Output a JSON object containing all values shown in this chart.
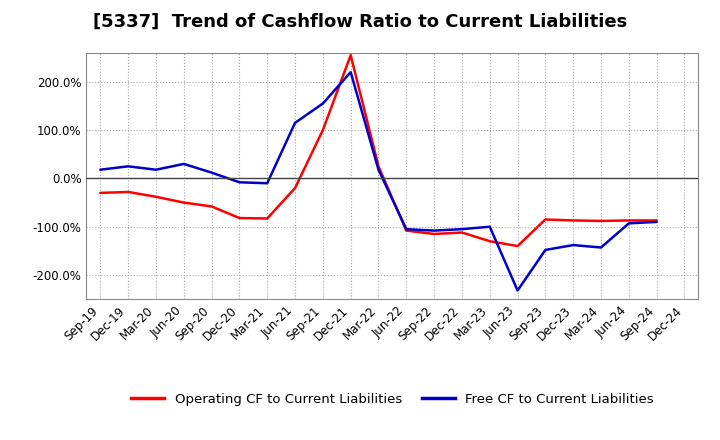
{
  "title": "[5337]  Trend of Cashflow Ratio to Current Liabilities",
  "x_labels": [
    "Sep-19",
    "Dec-19",
    "Mar-20",
    "Jun-20",
    "Sep-20",
    "Dec-20",
    "Mar-21",
    "Jun-21",
    "Sep-21",
    "Dec-21",
    "Mar-22",
    "Jun-22",
    "Sep-22",
    "Dec-22",
    "Mar-23",
    "Jun-23",
    "Sep-23",
    "Dec-23",
    "Mar-24",
    "Jun-24",
    "Sep-24",
    "Dec-24"
  ],
  "operating_cf": [
    -30,
    -28,
    -38,
    -50,
    -58,
    -82,
    -83,
    -20,
    100,
    255,
    25,
    -108,
    -115,
    -112,
    -130,
    -140,
    -85,
    -87,
    -88,
    -87,
    -87,
    null
  ],
  "free_cf": [
    18,
    25,
    18,
    30,
    12,
    -8,
    -10,
    115,
    155,
    220,
    18,
    -105,
    -108,
    -105,
    -100,
    -232,
    -148,
    -138,
    -143,
    -93,
    -90,
    null
  ],
  "operating_color": "#ff0000",
  "free_color": "#0000cc",
  "background_color": "#ffffff",
  "plot_bg_color": "#ffffff",
  "grid_color": "#aaaaaa",
  "ylim": [
    -250,
    260
  ],
  "yticks": [
    -200,
    -100,
    0,
    100,
    200
  ],
  "legend_operating": "Operating CF to Current Liabilities",
  "legend_free": "Free CF to Current Liabilities",
  "title_fontsize": 13,
  "tick_fontsize": 8.5
}
